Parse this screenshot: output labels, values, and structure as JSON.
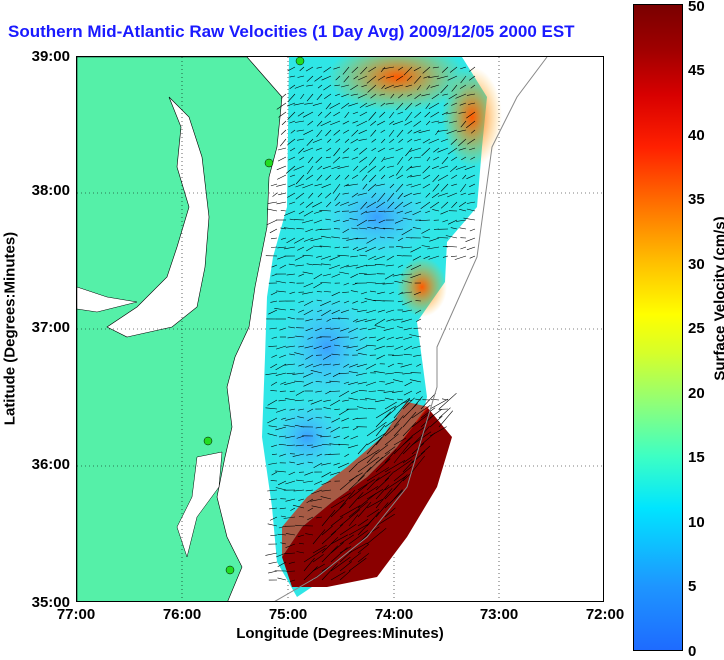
{
  "title": "Southern Mid-Atlantic Raw Velocities (1 Day Avg) 2009/12/05 2000 EST",
  "map": {
    "x_axis_label": "Longitude (Degrees:Minutes)",
    "y_axis_label": "Latitude (Degrees:Minutes)",
    "lon_ticks": [
      "77:00",
      "76:00",
      "75:00",
      "74:00",
      "73:00",
      "72:00"
    ],
    "lat_ticks": [
      "39:00",
      "38:00",
      "37:00",
      "36:00",
      "35:00"
    ],
    "lon_range": [
      -77,
      -72
    ],
    "lat_range": [
      35,
      39
    ],
    "grid": "dotted",
    "land_color": "#55f0a8",
    "water_color": "#ffffff",
    "station_color": "#22dd22"
  },
  "colorbar": {
    "label": "Surface Velocity (cm/s)",
    "ticks": [
      "0",
      "5",
      "10",
      "15",
      "20",
      "25",
      "30",
      "35",
      "40",
      "45",
      "50"
    ],
    "range": [
      0,
      50
    ]
  }
}
